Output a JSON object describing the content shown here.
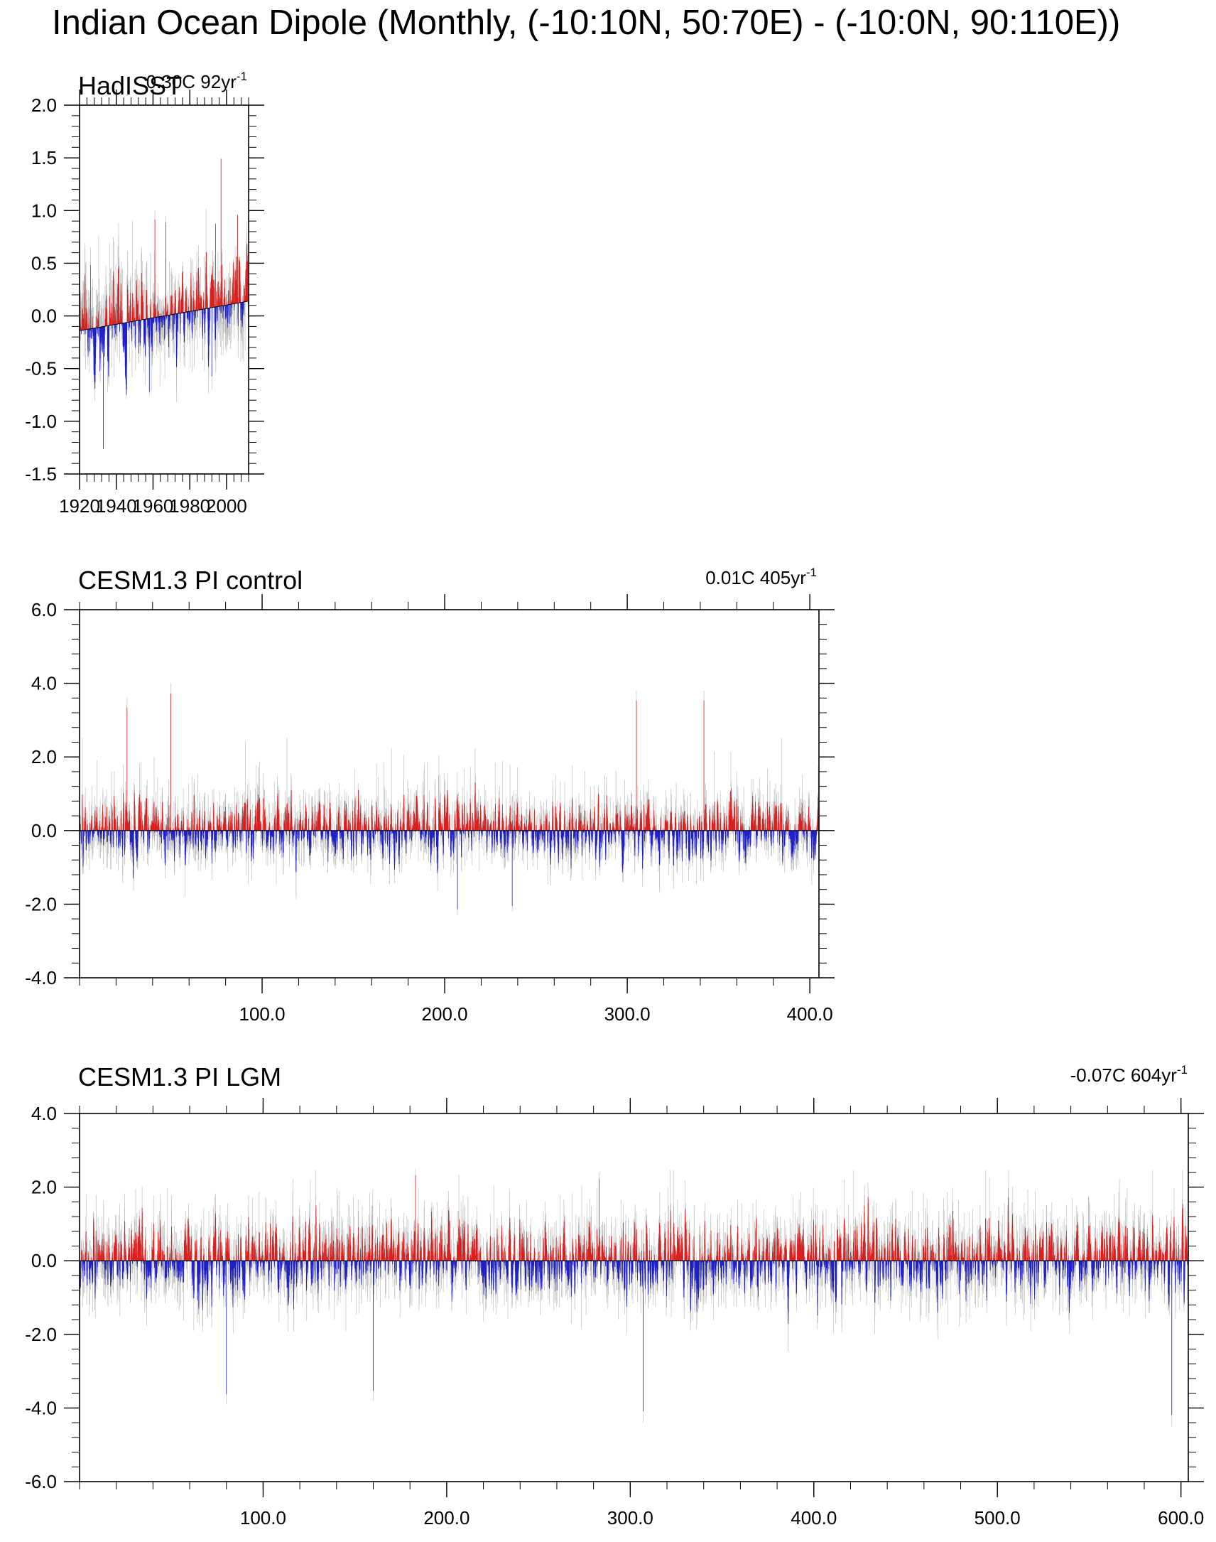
{
  "page_title": "Indian Ocean Dipole (Monthly, (-10:10N, 50:70E) - (-10:0N, 90:110E))",
  "colors": {
    "positive": "#d91f1f",
    "negative": "#2020c8",
    "raw": "#b5b5b5",
    "axis": "#000000",
    "zero_line": "#000000"
  },
  "chart_data": [
    {
      "type": "bar",
      "title": "HadISST",
      "trend_label": "0.30C 92yr",
      "trend_unit_exponent": "-1",
      "x_range": [
        1920,
        2012
      ],
      "ylim": [
        -1.5,
        2.0
      ],
      "x_ticks": [
        1920,
        1940,
        1960,
        1980,
        2000
      ],
      "x_tick_labels": [
        "1920",
        "1940",
        "1960",
        "1980",
        "2000"
      ],
      "y_ticks": [
        -1.5,
        -1.0,
        -0.5,
        0.0,
        0.5,
        1.0,
        1.5,
        2.0
      ],
      "y_tick_labels": [
        "-1.5",
        "-1.0",
        "-0.5",
        "0.0",
        "0.5",
        "1.0",
        "1.5",
        "2.0"
      ],
      "trend_line": {
        "x": [
          1920,
          2012
        ],
        "y": [
          -0.14,
          0.14
        ]
      },
      "notable_peaks": [
        {
          "x": 1926,
          "y": 0.65
        },
        {
          "x": 1961,
          "y": 1.0
        },
        {
          "x": 1967,
          "y": 0.95
        },
        {
          "x": 1994,
          "y": 0.85
        },
        {
          "x": 1997,
          "y": 1.5
        },
        {
          "x": 2006,
          "y": 0.9
        },
        {
          "x": 1933,
          "y": -1.25
        },
        {
          "x": 1958,
          "y": -0.75
        },
        {
          "x": 1992,
          "y": -0.7
        }
      ]
    },
    {
      "type": "bar",
      "title": "CESM1.3 PI control",
      "trend_label": "0.01C 405yr",
      "trend_unit_exponent": "-1",
      "x_range": [
        0,
        405
      ],
      "ylim": [
        -4.0,
        6.0
      ],
      "x_ticks": [
        100,
        200,
        300,
        400
      ],
      "x_tick_labels": [
        "100.0",
        "200.0",
        "300.0",
        "400.0"
      ],
      "y_ticks": [
        -4,
        -2,
        0,
        2,
        4,
        6
      ],
      "y_tick_labels": [
        "-4.0",
        "-2.0",
        "0.0",
        "2.0",
        "4.0",
        "6.0"
      ],
      "typical_max": 2.5,
      "typical_min": -1.7,
      "notable_peaks": [
        {
          "x": 50,
          "y": 4.0
        },
        {
          "x": 26,
          "y": 3.6
        },
        {
          "x": 305,
          "y": 3.8
        },
        {
          "x": 342,
          "y": 3.8
        },
        {
          "x": 237,
          "y": -2.2
        },
        {
          "x": 207,
          "y": -2.3
        }
      ]
    },
    {
      "type": "bar",
      "title": "CESM1.3 PI LGM",
      "trend_label": "-0.07C 604yr",
      "trend_unit_exponent": "-1",
      "x_range": [
        0,
        604
      ],
      "ylim": [
        -6.0,
        4.0
      ],
      "x_ticks": [
        100,
        200,
        300,
        400,
        500,
        600
      ],
      "x_tick_labels": [
        "100.0",
        "200.0",
        "300.0",
        "400.0",
        "500.0",
        "600.0"
      ],
      "y_ticks": [
        -6,
        -4,
        -2,
        0,
        2,
        4
      ],
      "y_tick_labels": [
        "-6.0",
        "-4.0",
        "-2.0",
        "0.0",
        "2.0",
        "4.0"
      ],
      "typical_max": 1.7,
      "typical_min": -2.2,
      "notable_peaks": [
        {
          "x": 183,
          "y": 2.5
        },
        {
          "x": 283,
          "y": 2.4
        },
        {
          "x": 307,
          "y": -4.4
        },
        {
          "x": 80,
          "y": -3.9
        },
        {
          "x": 160,
          "y": -3.8
        },
        {
          "x": 595,
          "y": -4.5
        }
      ]
    }
  ]
}
